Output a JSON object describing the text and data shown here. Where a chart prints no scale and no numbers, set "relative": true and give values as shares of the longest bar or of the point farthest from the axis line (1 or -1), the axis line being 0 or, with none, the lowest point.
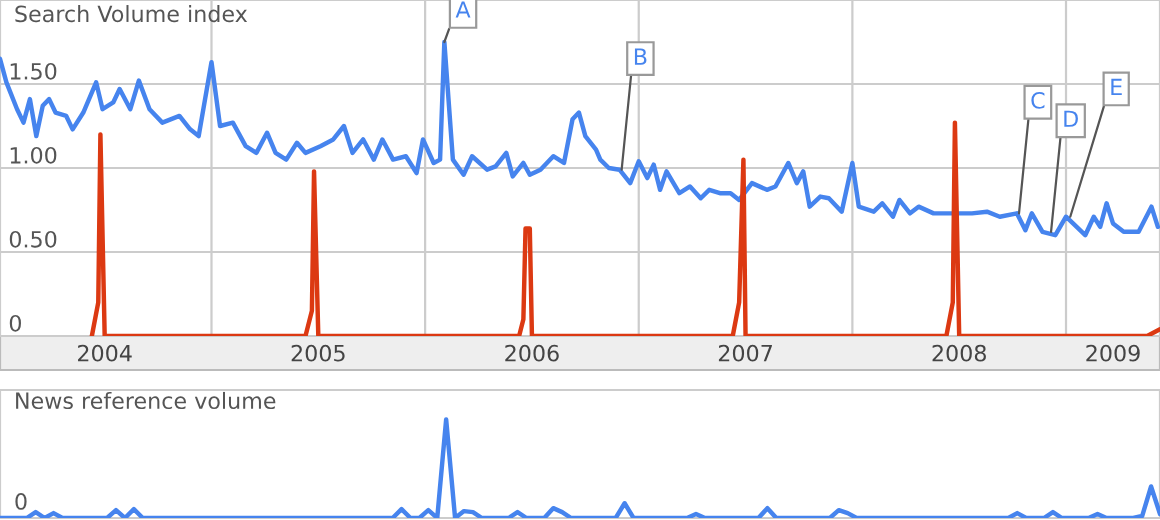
{
  "chart_data": [
    {
      "type": "line",
      "ylabel": "Search Volume index",
      "grid": true,
      "xlim": [
        2004.01,
        2009.44
      ],
      "ylim": [
        0,
        2.0
      ],
      "xticks": [
        {
          "value": 2005,
          "label": null
        },
        {
          "value": 2006,
          "label": null
        },
        {
          "value": 2007,
          "label": null
        },
        {
          "value": 2008,
          "label": null
        },
        {
          "value": 2009,
          "label": null
        },
        {
          "value": 2004.5,
          "label": "2004"
        },
        {
          "value": 2005.5,
          "label": "2005"
        },
        {
          "value": 2006.5,
          "label": "2006"
        },
        {
          "value": 2007.5,
          "label": "2007"
        },
        {
          "value": 2008.5,
          "label": "2008"
        },
        {
          "value": 2009.22,
          "label": "2009"
        }
      ],
      "yticks": [
        {
          "value": 0,
          "label": "0"
        },
        {
          "value": 0.5,
          "label": "0.50"
        },
        {
          "value": 1.0,
          "label": "1.00"
        },
        {
          "value": 1.5,
          "label": "1.50"
        }
      ],
      "series": [
        {
          "color": "#4684ee",
          "x": [
            2004.01,
            2004.04,
            2004.09,
            2004.12,
            2004.15,
            2004.18,
            2004.21,
            2004.24,
            2004.27,
            2004.32,
            2004.35,
            2004.4,
            2004.46,
            2004.49,
            2004.54,
            2004.57,
            2004.62,
            2004.66,
            2004.71,
            2004.77,
            2004.85,
            2004.9,
            2004.94,
            2005.0,
            2005.04,
            2005.1,
            2005.16,
            2005.21,
            2005.26,
            2005.3,
            2005.35,
            2005.4,
            2005.44,
            2005.51,
            2005.57,
            2005.62,
            2005.66,
            2005.71,
            2005.76,
            2005.8,
            2005.85,
            2005.91,
            2005.96,
            2005.99,
            2006.04,
            2006.07,
            2006.09,
            2006.13,
            2006.18,
            2006.22,
            2006.29,
            2006.33,
            2006.38,
            2006.41,
            2006.46,
            2006.49,
            2006.54,
            2006.6,
            2006.65,
            2006.69,
            2006.72,
            2006.75,
            2006.8,
            2006.82,
            2006.86,
            2006.91,
            2006.96,
            2007.0,
            2007.04,
            2007.07,
            2007.1,
            2007.13,
            2007.19,
            2007.24,
            2007.29,
            2007.33,
            2007.38,
            2007.43,
            2007.47,
            2007.53,
            2007.6,
            2007.64,
            2007.7,
            2007.74,
            2007.77,
            2007.8,
            2007.85,
            2007.89,
            2007.95,
            2008.0,
            2008.03,
            2008.1,
            2008.14,
            2008.19,
            2008.22,
            2008.27,
            2008.31,
            2008.38,
            2008.44,
            2008.5,
            2008.56,
            2008.63,
            2008.69,
            2008.77,
            2008.81,
            2008.84,
            2008.89,
            2008.95,
            2009.0,
            2009.05,
            2009.09,
            2009.13,
            2009.16,
            2009.19,
            2009.22,
            2009.27,
            2009.34,
            2009.4,
            2009.43
          ],
          "values": [
            1.65,
            1.51,
            1.35,
            1.27,
            1.41,
            1.19,
            1.37,
            1.41,
            1.33,
            1.31,
            1.23,
            1.33,
            1.51,
            1.35,
            1.39,
            1.47,
            1.35,
            1.52,
            1.35,
            1.27,
            1.31,
            1.23,
            1.19,
            1.63,
            1.25,
            1.27,
            1.13,
            1.09,
            1.21,
            1.09,
            1.05,
            1.15,
            1.09,
            1.13,
            1.17,
            1.25,
            1.09,
            1.17,
            1.05,
            1.17,
            1.05,
            1.07,
            0.97,
            1.17,
            1.03,
            1.05,
            1.75,
            1.05,
            0.96,
            1.07,
            0.99,
            1.01,
            1.09,
            0.95,
            1.03,
            0.96,
            0.99,
            1.07,
            1.03,
            1.29,
            1.33,
            1.19,
            1.11,
            1.05,
            1.0,
            0.99,
            0.91,
            1.04,
            0.94,
            1.02,
            0.87,
            0.98,
            0.85,
            0.89,
            0.82,
            0.87,
            0.85,
            0.85,
            0.81,
            0.91,
            0.87,
            0.89,
            1.03,
            0.91,
            0.98,
            0.77,
            0.83,
            0.82,
            0.74,
            1.03,
            0.77,
            0.74,
            0.79,
            0.71,
            0.81,
            0.73,
            0.77,
            0.73,
            0.73,
            0.73,
            0.73,
            0.74,
            0.71,
            0.73,
            0.63,
            0.73,
            0.62,
            0.6,
            0.71,
            0.65,
            0.6,
            0.71,
            0.65,
            0.79,
            0.67,
            0.62,
            0.62,
            0.77,
            0.65
          ]
        },
        {
          "color": "#dc3912",
          "x": [
            2004.44,
            2004.47,
            2004.48,
            2004.5,
            2005.44,
            2005.47,
            2005.48,
            2005.5,
            2006.44,
            2006.46,
            2006.47,
            2006.49,
            2006.5,
            2007.44,
            2007.47,
            2007.49,
            2007.5,
            2008.44,
            2008.47,
            2008.48,
            2008.5,
            2009.38,
            2009.44
          ],
          "values": [
            0,
            0.2,
            1.2,
            0,
            0,
            0.15,
            0.98,
            0,
            0,
            0.1,
            0.64,
            0.64,
            0,
            0,
            0.2,
            1.05,
            0,
            0,
            0.2,
            1.27,
            0,
            0,
            0.04
          ]
        }
      ],
      "annotations": [
        {
          "text": "A",
          "x": 2006.09,
          "y": 1.75
        },
        {
          "text": "B",
          "x": 2006.92,
          "y": 0.99
        },
        {
          "text": "C",
          "x": 2008.78,
          "y": 0.73
        },
        {
          "text": "D",
          "x": 2008.93,
          "y": 0.62
        },
        {
          "text": "E",
          "x": 2009.02,
          "y": 0.71
        }
      ]
    },
    {
      "type": "line",
      "ylabel": "News reference volume",
      "relative": true,
      "categories": [
        null,
        null,
        null,
        null,
        null,
        null,
        null,
        null,
        null,
        null,
        null,
        null,
        null,
        null,
        null,
        null,
        null,
        null,
        null,
        null,
        null,
        null,
        null,
        null,
        null,
        null,
        null,
        null,
        null,
        null,
        null,
        null,
        null,
        null,
        null,
        null,
        null,
        null,
        null,
        null,
        null,
        null,
        null,
        null,
        null,
        null,
        null,
        null,
        null,
        null,
        null,
        null,
        null,
        null,
        null,
        null,
        null,
        null,
        null,
        null,
        null,
        null,
        null,
        null,
        null,
        null,
        null,
        null,
        null,
        null,
        null,
        null,
        null,
        null,
        null,
        null,
        null,
        null,
        null,
        null,
        null,
        null,
        null,
        null,
        null,
        null,
        null,
        null,
        null,
        null,
        null,
        null,
        null,
        null,
        null,
        null,
        null,
        null,
        null,
        null,
        null,
        null,
        null,
        null,
        null,
        null,
        null,
        null,
        null,
        null,
        null,
        null,
        null,
        null,
        null,
        null,
        null,
        null,
        null,
        null,
        null,
        null,
        null,
        null,
        null,
        null,
        null,
        null,
        null,
        null,
        null
      ],
      "annotations": [
        "0"
      ],
      "series": [
        {
          "color": "#4684ee",
          "values": [
            0,
            0,
            0,
            0,
            0.06,
            0,
            0.05,
            0,
            0,
            0,
            0,
            0,
            0,
            0.08,
            0,
            0.09,
            0,
            0,
            0,
            0,
            0,
            0,
            0,
            0,
            0,
            0,
            0,
            0,
            0,
            0,
            0,
            0,
            0,
            0,
            0,
            0,
            0,
            0,
            0,
            0,
            0,
            0,
            0,
            0,
            0,
            0.09,
            0,
            0,
            0.08,
            0,
            1,
            0,
            0.07,
            0.06,
            0,
            0,
            0,
            0,
            0.06,
            0,
            0,
            0,
            0.1,
            0.06,
            0,
            0,
            0,
            0,
            0,
            0,
            0.15,
            0,
            0,
            0,
            0,
            0,
            0,
            0,
            0.04,
            0,
            0,
            0,
            0,
            0,
            0,
            0,
            0.1,
            0,
            0,
            0,
            0,
            0,
            0,
            0,
            0.08,
            0.05,
            0,
            0,
            0,
            0,
            0,
            0,
            0,
            0,
            0,
            0,
            0,
            0,
            0,
            0,
            0,
            0,
            0,
            0,
            0.05,
            0,
            0,
            0,
            0.06,
            0,
            0,
            0,
            0,
            0.04,
            0,
            0,
            0,
            0,
            0.02,
            0.32,
            0.04
          ]
        }
      ]
    }
  ]
}
